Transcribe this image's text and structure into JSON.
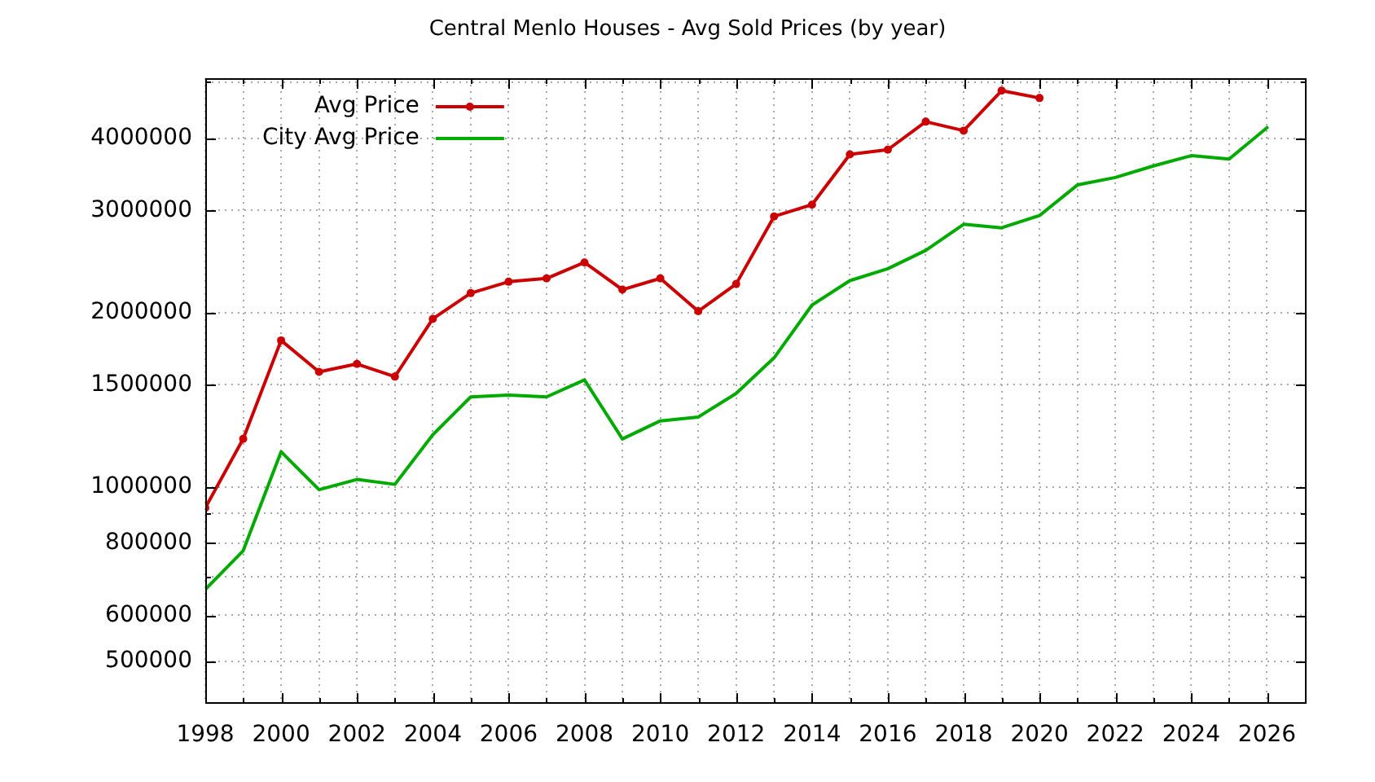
{
  "chart_data": {
    "type": "line",
    "title": "Central Menlo Houses - Avg Sold Prices (by year)",
    "x": [
      1998,
      1999,
      2000,
      2001,
      2002,
      2003,
      2004,
      2005,
      2006,
      2007,
      2008,
      2009,
      2010,
      2011,
      2012,
      2013,
      2014,
      2015,
      2016,
      2017,
      2018,
      2019,
      2020,
      2021,
      2022,
      2023,
      2024,
      2025,
      2026
    ],
    "series": [
      {
        "name": "Avg Price",
        "color": "#cc0000",
        "marker": "circle",
        "values": [
          920000,
          1210000,
          1790000,
          1580000,
          1630000,
          1550000,
          1950000,
          2160000,
          2260000,
          2290000,
          2440000,
          2190000,
          2290000,
          2010000,
          2240000,
          2930000,
          3070000,
          3750000,
          3820000,
          4270000,
          4120000,
          4830000,
          4690000,
          null,
          null,
          null,
          null,
          null,
          null
        ]
      },
      {
        "name": "City Avg Price",
        "color": "#00aa00",
        "marker": "none",
        "values": [
          665000,
          776000,
          1150000,
          989000,
          1030000,
          1010000,
          1230000,
          1430000,
          1440000,
          1430000,
          1530000,
          1210000,
          1300000,
          1320000,
          1450000,
          1670000,
          2060000,
          2270000,
          2380000,
          2560000,
          2840000,
          2800000,
          2940000,
          3320000,
          3420000,
          3580000,
          3730000,
          3680000,
          4170000
        ]
      }
    ],
    "xlim": [
      1998,
      2027
    ],
    "xticks": [
      1998,
      {
        "value": 1999,
        "label": null
      },
      2000,
      {
        "value": 2001,
        "label": null
      },
      2002,
      {
        "value": 2003,
        "label": null
      },
      2004,
      {
        "value": 2005,
        "label": null
      },
      2006,
      {
        "value": 2007,
        "label": null
      },
      2008,
      {
        "value": 2009,
        "label": null
      },
      2010,
      {
        "value": 2011,
        "label": null
      },
      2012,
      {
        "value": 2013,
        "label": null
      },
      2014,
      {
        "value": 2015,
        "label": null
      },
      2016,
      {
        "value": 2017,
        "label": null
      },
      2018,
      {
        "value": 2019,
        "label": null
      },
      2020,
      {
        "value": 2021,
        "label": null
      },
      2022,
      {
        "value": 2023,
        "label": null
      },
      2024,
      {
        "value": 2025,
        "label": null
      },
      2026
    ],
    "ylim": [
      425000,
      5075000
    ],
    "yticks": [
      500000,
      600000,
      {
        "value": 700000,
        "label": null
      },
      800000,
      {
        "value": 900000,
        "label": null
      },
      1000000,
      1500000,
      2000000,
      3000000,
      4000000,
      {
        "value": 5000000,
        "label": null
      }
    ],
    "log": true,
    "grid": true,
    "legend": "top left"
  }
}
